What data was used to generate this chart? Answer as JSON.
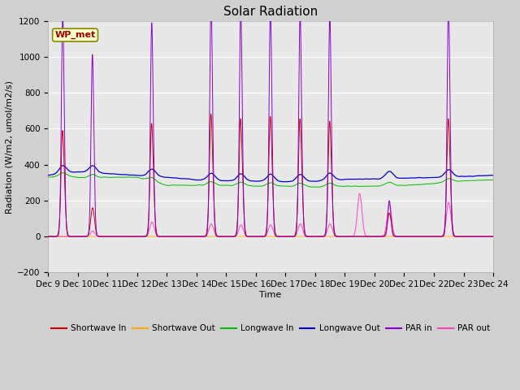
{
  "title": "Solar Radiation",
  "xlabel": "Time",
  "ylabel": "Radiation (W/m2, umol/m2/s)",
  "ylim": [
    -200,
    1200
  ],
  "xlim": [
    0,
    360
  ],
  "yticks": [
    -200,
    0,
    200,
    400,
    600,
    800,
    1000,
    1200
  ],
  "xtick_labels": [
    "Dec 9",
    "Dec 10",
    "Dec 11",
    "Dec 12",
    "Dec 13",
    "Dec 14",
    "Dec 15",
    "Dec 16",
    "Dec 17",
    "Dec 18",
    "Dec 19",
    "Dec 20",
    "Dec 21",
    "Dec 22",
    "Dec 23",
    "Dec 24"
  ],
  "xtick_positions": [
    0,
    24,
    48,
    72,
    96,
    120,
    144,
    168,
    192,
    216,
    240,
    264,
    288,
    312,
    336,
    360
  ],
  "station_label": "WP_met",
  "fig_facecolor": "#d0d0d0",
  "ax_facecolor": "#e8e8e8",
  "series": {
    "shortwave_in": {
      "color": "#cc0000",
      "label": "Shortwave In"
    },
    "shortwave_out": {
      "color": "#ffaa00",
      "label": "Shortwave Out"
    },
    "longwave_in": {
      "color": "#00bb00",
      "label": "Longwave In"
    },
    "longwave_out": {
      "color": "#0000cc",
      "label": "Longwave Out"
    },
    "par_in": {
      "color": "#8800cc",
      "label": "PAR in"
    },
    "par_out": {
      "color": "#ff44bb",
      "label": "PAR out"
    }
  },
  "title_fontsize": 11,
  "label_fontsize": 8,
  "tick_fontsize": 7.5,
  "lw_data": 0.7
}
